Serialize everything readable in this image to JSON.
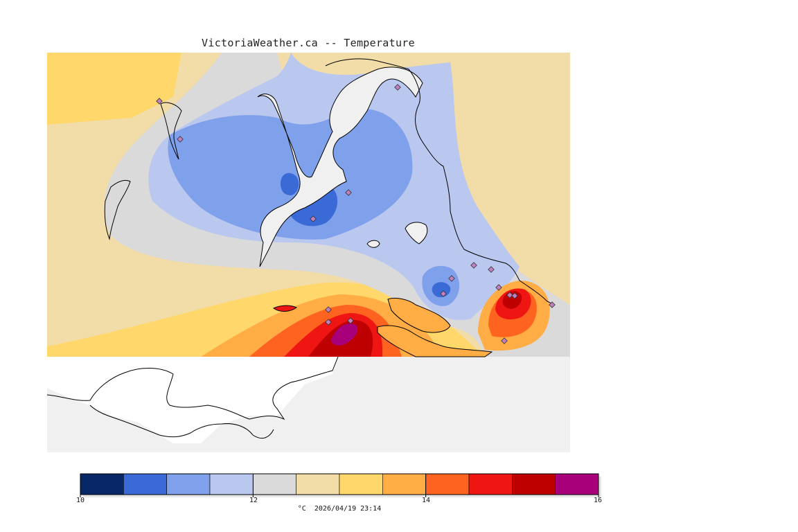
{
  "header": {
    "title": "VictoriaWeather.ca -- Temperature"
  },
  "colors": {
    "land_bg": "#f0f0f0",
    "coast": "#000000",
    "station_fill": "#c080c0"
  },
  "legend": {
    "min": 10,
    "max": 16,
    "band_colors": [
      "#082766",
      "#3a6ad6",
      "#7fa0ea",
      "#bac8ef",
      "#dadada",
      "#f2dca8",
      "#ffd76a",
      "#ffad44",
      "#ff6320",
      "#ee1512",
      "#bf0000",
      "#a8007a"
    ],
    "tick_labels": [
      "10",
      "12",
      "14",
      "16"
    ],
    "units": "°C",
    "timestamp": "2026/04/19 23:14"
  },
  "stations": {
    "count": 17
  }
}
